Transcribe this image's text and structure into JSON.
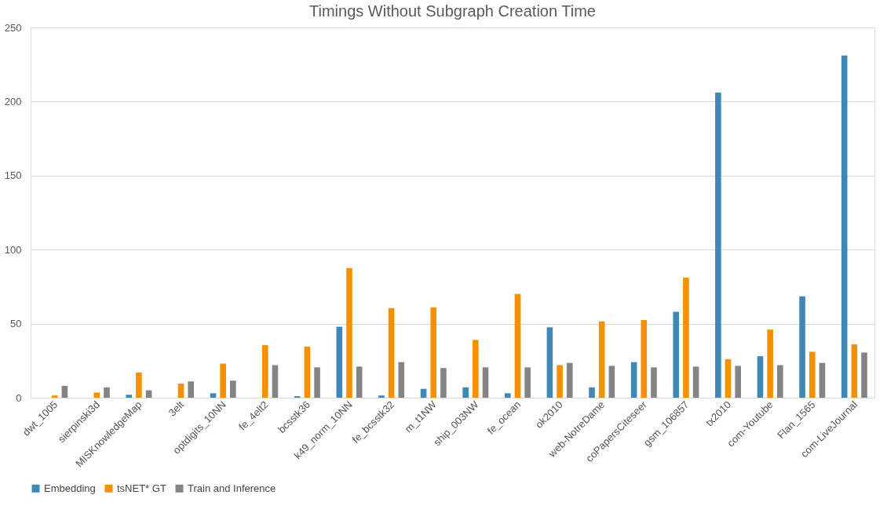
{
  "chart_data": {
    "type": "bar",
    "title": "Timings Without Subgraph Creation Time",
    "categories": [
      "dwt_1005",
      "sierpinski3d",
      "MISKnowledgeMap",
      "3elt",
      "optdigits_10NN",
      "fe_4elt2",
      "bcsstk36",
      "k49_norm_10NN",
      "fe_bcsstk32",
      "m_t1NW",
      "ship_003NW",
      "fe_ocean",
      "ok2010",
      "web-NotreDame",
      "coPapersCiteseer",
      "gsm_106857",
      "tx2010",
      "com-Youtube",
      "Flan_1565",
      "com-LiveJournal"
    ],
    "series": [
      {
        "name": "Embedding",
        "color": "#3f88b5",
        "values": [
          0,
          0,
          2,
          0,
          3,
          0,
          1,
          48,
          1.5,
          6,
          7,
          3,
          47.5,
          7,
          24,
          58,
          206,
          28,
          68.5,
          231
        ]
      },
      {
        "name": "tsNET* GT",
        "color": "#f59100",
        "values": [
          1.5,
          3.5,
          17,
          9.5,
          23,
          35.5,
          34.5,
          87.5,
          60.5,
          61,
          39,
          70,
          22,
          51.5,
          52.5,
          81,
          26,
          46,
          31,
          36
        ]
      },
      {
        "name": "Train and Inference",
        "color": "#848484",
        "values": [
          8,
          7,
          5,
          11,
          11.5,
          22,
          20.5,
          21,
          24,
          20,
          20.5,
          20.5,
          23.5,
          21.5,
          20.5,
          21,
          21.5,
          22,
          23.5,
          30.5
        ]
      }
    ],
    "ylim": [
      0,
      250
    ],
    "yticks": [
      0,
      50,
      100,
      150,
      200,
      250
    ],
    "grid": "y",
    "legend": "bottom"
  }
}
